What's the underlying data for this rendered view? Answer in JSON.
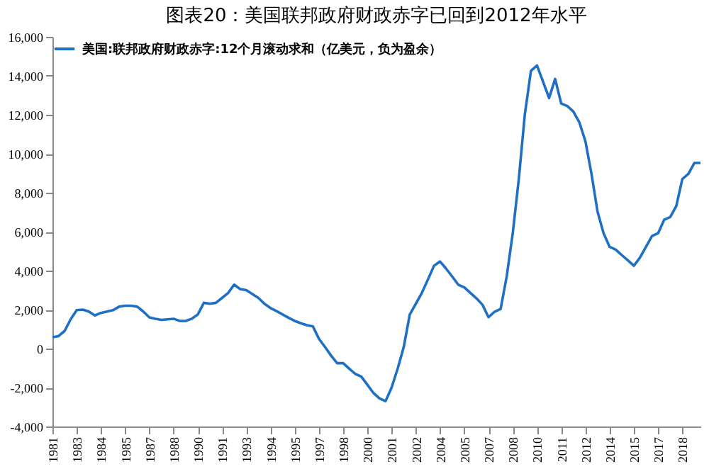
{
  "chart_data": {
    "type": "line",
    "title": "图表20：美国联邦政府财政赤字已回到2012年水平",
    "categories": [
      "1981",
      null,
      null,
      null,
      "1983",
      null,
      null,
      null,
      "1984",
      null,
      null,
      null,
      "1985",
      null,
      null,
      null,
      "1987",
      null,
      null,
      null,
      "1988",
      null,
      null,
      null,
      "1990",
      null,
      null,
      null,
      "1991",
      null,
      null,
      null,
      "1993",
      null,
      null,
      null,
      "1994",
      null,
      null,
      null,
      "1995",
      null,
      null,
      null,
      "1997",
      null,
      null,
      null,
      "1998",
      null,
      null,
      null,
      "2000",
      null,
      null,
      null,
      "2001",
      null,
      null,
      null,
      "2002",
      null,
      null,
      null,
      "2004",
      null,
      null,
      null,
      "2005",
      null,
      null,
      null,
      "2007",
      null,
      null,
      null,
      "2008",
      null,
      null,
      null,
      "2010",
      null,
      null,
      null,
      "2011",
      null,
      null,
      null,
      "2012",
      null,
      null,
      null,
      "2014",
      null,
      null,
      null,
      "2015",
      null,
      null,
      null,
      "2017",
      null,
      null,
      null,
      "2018",
      null,
      null,
      null
    ],
    "series": [
      {
        "name": "美国:联邦政府财政赤字:12个月滚动求和（亿美元，负为盈余）",
        "color": "#1f6fc5",
        "values": [
          580,
          640,
          900,
          1500,
          1970,
          2000,
          1900,
          1700,
          1830,
          1900,
          1970,
          2150,
          2200,
          2200,
          2150,
          1900,
          1600,
          1530,
          1470,
          1500,
          1530,
          1420,
          1420,
          1530,
          1750,
          2350,
          2300,
          2350,
          2600,
          2850,
          3280,
          3050,
          3000,
          2800,
          2600,
          2300,
          2080,
          1920,
          1750,
          1580,
          1420,
          1300,
          1200,
          1140,
          500,
          80,
          -360,
          -750,
          -750,
          -1030,
          -1300,
          -1440,
          -1860,
          -2280,
          -2560,
          -2700,
          -2000,
          -1030,
          80,
          1750,
          2300,
          2860,
          3550,
          4250,
          4470,
          4100,
          3700,
          3280,
          3140,
          2860,
          2580,
          2250,
          1610,
          1890,
          2030,
          3700,
          5920,
          8700,
          12030,
          14250,
          14530,
          13700,
          12860,
          13840,
          12580,
          12450,
          12170,
          11610,
          10640,
          8970,
          7030,
          5920,
          5220,
          5080,
          4800,
          4530,
          4250,
          4670,
          5220,
          5780,
          5920,
          6610,
          6750,
          7310,
          8700,
          8970,
          9530,
          9530
        ]
      }
    ],
    "ylim": [
      -4000,
      16000
    ],
    "yticks": [
      {
        "value": -4000,
        "label": "-4,000"
      },
      {
        "value": -2000,
        "label": "-2,000"
      },
      0,
      {
        "value": 2000,
        "label": "2,000"
      },
      {
        "value": 4000,
        "label": "4,000"
      },
      {
        "value": 6000,
        "label": "6,000"
      },
      {
        "value": 8000,
        "label": "8,000"
      },
      {
        "value": 10000,
        "label": "10,000"
      },
      {
        "value": 12000,
        "label": "12,000"
      },
      {
        "value": 14000,
        "label": "14,000"
      },
      {
        "value": 16000,
        "label": "16,000"
      }
    ],
    "grid": false,
    "legend": "top left",
    "marker": "none",
    "line_style": "solid"
  }
}
